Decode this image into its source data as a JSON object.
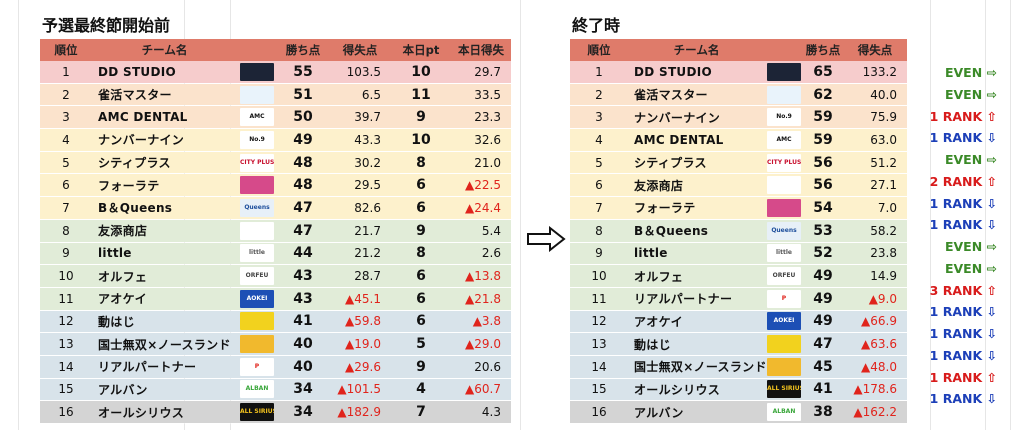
{
  "before": {
    "title": "予選最終節開始前",
    "headers": [
      "順位",
      "チーム名",
      "勝ち点",
      "得失点",
      "本日pt",
      "本日得失"
    ],
    "rows": [
      {
        "rank": "1",
        "name": "DD STUDIO",
        "points": "55",
        "diff": "103.5",
        "today_pt": "10",
        "today_diff": "29.7",
        "diff_neg": false,
        "today_neg": false,
        "logo": "dd-studio-logo",
        "zone": "pink"
      },
      {
        "rank": "2",
        "name": "雀活マスター",
        "points": "51",
        "diff": "6.5",
        "today_pt": "11",
        "today_diff": "33.5",
        "diff_neg": false,
        "today_neg": false,
        "logo": "jankatsu-logo",
        "zone": "peach"
      },
      {
        "rank": "3",
        "name": "AMC DENTAL",
        "points": "50",
        "diff": "39.7",
        "today_pt": "9",
        "today_diff": "23.3",
        "diff_neg": false,
        "today_neg": false,
        "logo": "amc-logo",
        "zone": "peach"
      },
      {
        "rank": "4",
        "name": "ナンバーナイン",
        "points": "49",
        "diff": "43.3",
        "today_pt": "10",
        "today_diff": "32.6",
        "diff_neg": false,
        "today_neg": false,
        "logo": "no9-logo",
        "zone": "yellow"
      },
      {
        "rank": "5",
        "name": "シティプラス",
        "points": "48",
        "diff": "30.2",
        "today_pt": "8",
        "today_diff": "21.0",
        "diff_neg": false,
        "today_neg": false,
        "logo": "cityplus-logo",
        "zone": "yellow"
      },
      {
        "rank": "6",
        "name": "フォーラテ",
        "points": "48",
        "diff": "29.5",
        "today_pt": "6",
        "today_diff": "▲22.5",
        "diff_neg": false,
        "today_neg": true,
        "logo": "forate-logo",
        "zone": "yellow"
      },
      {
        "rank": "7",
        "name": "B＆Queens",
        "points": "47",
        "diff": "82.6",
        "today_pt": "6",
        "today_diff": "▲24.4",
        "diff_neg": false,
        "today_neg": true,
        "logo": "queens-logo",
        "zone": "yellow"
      },
      {
        "rank": "8",
        "name": "友添商店",
        "points": "47",
        "diff": "21.7",
        "today_pt": "9",
        "today_diff": "5.4",
        "diff_neg": false,
        "today_neg": false,
        "logo": "tomozoe-logo",
        "zone": "green"
      },
      {
        "rank": "9",
        "name": "little",
        "points": "44",
        "diff": "21.2",
        "today_pt": "8",
        "today_diff": "2.6",
        "diff_neg": false,
        "today_neg": false,
        "logo": "little-logo",
        "zone": "green"
      },
      {
        "rank": "10",
        "name": "オルフェ",
        "points": "43",
        "diff": "28.7",
        "today_pt": "6",
        "today_diff": "▲13.8",
        "diff_neg": false,
        "today_neg": true,
        "logo": "orfeu-logo",
        "zone": "green"
      },
      {
        "rank": "11",
        "name": "アオケイ",
        "points": "43",
        "diff": "▲45.1",
        "today_pt": "6",
        "today_diff": "▲21.8",
        "diff_neg": true,
        "today_neg": true,
        "logo": "aokei-logo",
        "zone": "green"
      },
      {
        "rank": "12",
        "name": "動はじ",
        "points": "41",
        "diff": "▲59.8",
        "today_pt": "6",
        "today_diff": "▲3.8",
        "diff_neg": true,
        "today_neg": true,
        "logo": "dohaji-logo",
        "zone": "blue"
      },
      {
        "rank": "13",
        "name": "国士無双×ノースランド",
        "points": "40",
        "diff": "▲19.0",
        "today_pt": "5",
        "today_diff": "▲29.0",
        "diff_neg": true,
        "today_neg": true,
        "logo": "kokushi-logo",
        "zone": "blue"
      },
      {
        "rank": "14",
        "name": "リアルパートナー",
        "points": "40",
        "diff": "▲29.6",
        "today_pt": "9",
        "today_diff": "20.6",
        "diff_neg": true,
        "today_neg": false,
        "logo": "realpartner-logo",
        "zone": "blue"
      },
      {
        "rank": "15",
        "name": "アルバン",
        "points": "34",
        "diff": "▲101.5",
        "today_pt": "4",
        "today_diff": "▲60.7",
        "diff_neg": true,
        "today_neg": true,
        "logo": "alban-logo",
        "zone": "blue"
      },
      {
        "rank": "16",
        "name": "オールシリウス",
        "points": "34",
        "diff": "▲182.9",
        "today_pt": "7",
        "today_diff": "4.3",
        "diff_neg": true,
        "today_neg": false,
        "logo": "allsirius-logo",
        "zone": "gray"
      }
    ]
  },
  "after": {
    "title": "終了時",
    "headers": [
      "順位",
      "チーム名",
      "勝ち点",
      "得失点"
    ],
    "rows": [
      {
        "rank": "1",
        "name": "DD STUDIO",
        "points": "65",
        "diff": "133.2",
        "diff_neg": false,
        "logo": "dd-studio-logo",
        "zone": "pink",
        "move": "EVEN ⇨",
        "move_type": "even"
      },
      {
        "rank": "2",
        "name": "雀活マスター",
        "points": "62",
        "diff": "40.0",
        "diff_neg": false,
        "logo": "jankatsu-logo",
        "zone": "peach",
        "move": "EVEN ⇨",
        "move_type": "even"
      },
      {
        "rank": "3",
        "name": "ナンバーナイン",
        "points": "59",
        "diff": "75.9",
        "diff_neg": false,
        "logo": "no9-logo",
        "zone": "peach",
        "move": "1 RANK ⇧",
        "move_type": "up"
      },
      {
        "rank": "4",
        "name": "AMC DENTAL",
        "points": "59",
        "diff": "63.0",
        "diff_neg": false,
        "logo": "amc-logo",
        "zone": "yellow",
        "move": "1 RANK ⇩",
        "move_type": "down"
      },
      {
        "rank": "5",
        "name": "シティプラス",
        "points": "56",
        "diff": "51.2",
        "diff_neg": false,
        "logo": "cityplus-logo",
        "zone": "yellow",
        "move": "EVEN ⇨",
        "move_type": "even"
      },
      {
        "rank": "6",
        "name": "友添商店",
        "points": "56",
        "diff": "27.1",
        "diff_neg": false,
        "logo": "tomozoe-logo",
        "zone": "yellow",
        "move": "2 RANK ⇧",
        "move_type": "up"
      },
      {
        "rank": "7",
        "name": "フォーラテ",
        "points": "54",
        "diff": "7.0",
        "diff_neg": false,
        "logo": "forate-logo",
        "zone": "yellow",
        "move": "1 RANK ⇩",
        "move_type": "down"
      },
      {
        "rank": "8",
        "name": "B＆Queens",
        "points": "53",
        "diff": "58.2",
        "diff_neg": false,
        "logo": "queens-logo",
        "zone": "green",
        "move": "1 RANK ⇩",
        "move_type": "down"
      },
      {
        "rank": "9",
        "name": "little",
        "points": "52",
        "diff": "23.8",
        "diff_neg": false,
        "logo": "little-logo",
        "zone": "green",
        "move": "EVEN ⇨",
        "move_type": "even"
      },
      {
        "rank": "10",
        "name": "オルフェ",
        "points": "49",
        "diff": "14.9",
        "diff_neg": false,
        "logo": "orfeu-logo",
        "zone": "green",
        "move": "EVEN ⇨",
        "move_type": "even"
      },
      {
        "rank": "11",
        "name": "リアルパートナー",
        "points": "49",
        "diff": "▲9.0",
        "diff_neg": true,
        "logo": "realpartner-logo",
        "zone": "green",
        "move": "3 RANK ⇧",
        "move_type": "up"
      },
      {
        "rank": "12",
        "name": "アオケイ",
        "points": "49",
        "diff": "▲66.9",
        "diff_neg": true,
        "logo": "aokei-logo",
        "zone": "blue",
        "move": "1 RANK ⇩",
        "move_type": "down"
      },
      {
        "rank": "13",
        "name": "動はじ",
        "points": "47",
        "diff": "▲63.6",
        "diff_neg": true,
        "logo": "dohaji-logo",
        "zone": "blue",
        "move": "1 RANK ⇩",
        "move_type": "down"
      },
      {
        "rank": "14",
        "name": "国士無双×ノースランド",
        "points": "45",
        "diff": "▲48.0",
        "diff_neg": true,
        "logo": "kokushi-logo",
        "zone": "blue",
        "move": "1 RANK ⇩",
        "move_type": "down"
      },
      {
        "rank": "15",
        "name": "オールシリウス",
        "points": "41",
        "diff": "▲178.6",
        "diff_neg": true,
        "logo": "allsirius-logo",
        "zone": "blue",
        "move": "1 RANK ⇧",
        "move_type": "up"
      },
      {
        "rank": "16",
        "name": "アルバン",
        "points": "38",
        "diff": "▲162.2",
        "diff_neg": true,
        "logo": "alban-logo",
        "zone": "gray",
        "move": "1 RANK ⇩",
        "move_type": "down"
      }
    ]
  },
  "arrow_icon": "right-arrow-icon",
  "zone_colors": {
    "pink": "#f6cccc",
    "peach": "#fbe3cc",
    "yellow": "#fdf1cc",
    "green": "#e1ecd8",
    "blue": "#d8e3ea",
    "gray": "#d4d4d4"
  },
  "header_color": "#df7b6a",
  "logos": {
    "dd-studio-logo": {
      "bg": "#1c2436",
      "fg": "#6fa0e8",
      "text": ""
    },
    "jankatsu-logo": {
      "bg": "#e9f3fb",
      "fg": "#1f7fd0",
      "text": ""
    },
    "amc-logo": {
      "bg": "#ffffff",
      "fg": "#111111",
      "text": "AMC"
    },
    "no9-logo": {
      "bg": "#ffffff",
      "fg": "#111111",
      "text": "No.9"
    },
    "cityplus-logo": {
      "bg": "#ffffff",
      "fg": "#c8102e",
      "text": "CITY PLUS"
    },
    "forate-logo": {
      "bg": "#d64a8a",
      "fg": "#ffffff",
      "text": ""
    },
    "queens-logo": {
      "bg": "#e7f0f8",
      "fg": "#1e4f9c",
      "text": "Queens"
    },
    "tomozoe-logo": {
      "bg": "#ffffff",
      "fg": "#d9301f",
      "text": ""
    },
    "little-logo": {
      "bg": "#ffffff",
      "fg": "#555555",
      "text": "little"
    },
    "orfeu-logo": {
      "bg": "#ffffff",
      "fg": "#444444",
      "text": "ORFEU"
    },
    "aokei-logo": {
      "bg": "#1d4fb5",
      "fg": "#ffffff",
      "text": "AOKEI"
    },
    "dohaji-logo": {
      "bg": "#f2d21e",
      "fg": "#d9301f",
      "text": ""
    },
    "kokushi-logo": {
      "bg": "#f1b92d",
      "fg": "#b3261e",
      "text": ""
    },
    "realpartner-logo": {
      "bg": "#ffffff",
      "fg": "#e0241c",
      "text": "P"
    },
    "alban-logo": {
      "bg": "#ffffff",
      "fg": "#39a63a",
      "text": "ALBAN"
    },
    "allsirius-logo": {
      "bg": "#111111",
      "fg": "#f2c21e",
      "text": "ALL SIRIUS"
    }
  }
}
